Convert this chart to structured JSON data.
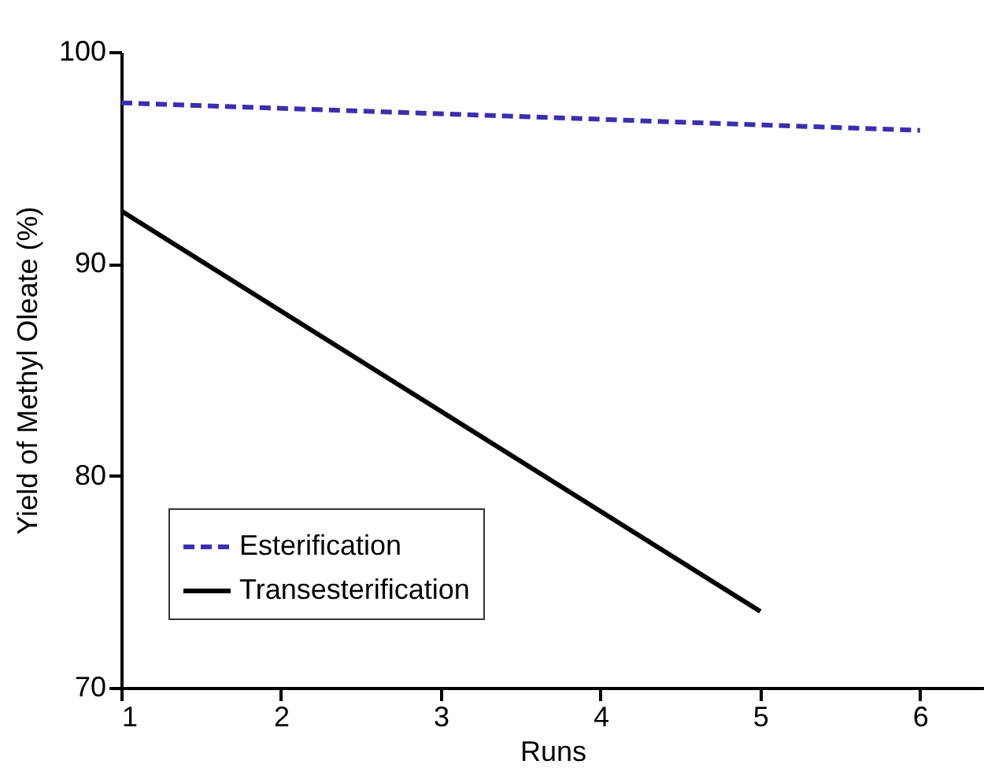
{
  "chart_data": {
    "type": "line",
    "xlabel": "Runs",
    "ylabel": "Yield of Methyl Oleate (%)",
    "xlim": [
      1,
      6.4
    ],
    "xticks": [
      1,
      2,
      3,
      4,
      5,
      6
    ],
    "ylim": [
      70,
      100
    ],
    "yticks": [
      70,
      80,
      90,
      100
    ],
    "grid": false,
    "legend": "bottom left",
    "marker": "none",
    "series": [
      {
        "name": "Esterification",
        "color": "#3a2fb0",
        "line_style": "dashed",
        "x": [
          1,
          6
        ],
        "values": [
          97.6,
          96.3
        ]
      },
      {
        "name": "Transesterification",
        "color": "#000000",
        "line_style": "solid",
        "x": [
          1,
          5
        ],
        "values": [
          92.5,
          73.6
        ]
      }
    ]
  }
}
